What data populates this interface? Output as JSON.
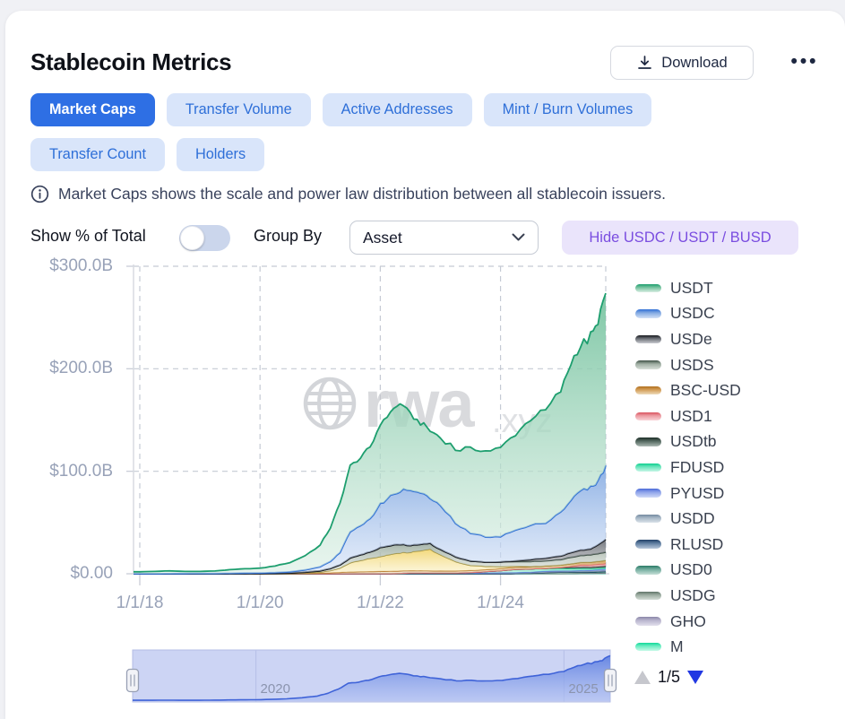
{
  "header": {
    "title": "Stablecoin Metrics",
    "download_label": "Download",
    "more_label": "•••"
  },
  "tabs": [
    {
      "label": "Market Caps",
      "active": true,
      "row": 1
    },
    {
      "label": "Transfer Volume",
      "active": false,
      "row": 1
    },
    {
      "label": "Active Addresses",
      "active": false,
      "row": 1
    },
    {
      "label": "Mint / Burn Volumes",
      "active": false,
      "row": 1
    },
    {
      "label": "Transfer Count",
      "active": false,
      "row": 2
    },
    {
      "label": "Holders",
      "active": false,
      "row": 2
    }
  ],
  "info": {
    "text": "Market Caps shows the scale and power law distribution between all stablecoin issuers."
  },
  "controls": {
    "show_percent_label": "Show % of Total",
    "toggle_state": "off",
    "group_by_label": "Group By",
    "group_by_value": "Asset",
    "hide_assets_label": "Hide USDC / USDT / BUSD",
    "hide_button_bg": "#eae4fb",
    "hide_button_text": "#7a4de0",
    "active_tab_color": "#2e6fe4"
  },
  "chart_data": {
    "type": "area",
    "stacked": true,
    "ylim": [
      0,
      300
    ],
    "y_ticks": [
      {
        "label": "$300.0B",
        "value": 300
      },
      {
        "label": "$200.0B",
        "value": 200
      },
      {
        "label": "$100.0B",
        "value": 100
      },
      {
        "label": "$0.00",
        "value": 0
      }
    ],
    "x_ticks": [
      {
        "label": "1/1/18",
        "year": 2018
      },
      {
        "label": "1/1/20",
        "year": 2020
      },
      {
        "label": "1/1/22",
        "year": 2022
      },
      {
        "label": "1/1/24",
        "year": 2024
      }
    ],
    "x": [
      2018.0,
      2018.25,
      2018.5,
      2018.75,
      2019.0,
      2019.25,
      2019.5,
      2019.75,
      2020.0,
      2020.25,
      2020.5,
      2020.75,
      2021.0,
      2021.17,
      2021.33,
      2021.5,
      2021.67,
      2021.83,
      2022.0,
      2022.17,
      2022.33,
      2022.5,
      2022.67,
      2022.83,
      2023.0,
      2023.25,
      2023.5,
      2023.75,
      2024.0,
      2024.25,
      2024.5,
      2024.75,
      2025.0,
      2025.17,
      2025.33,
      2025.5,
      2025.62,
      2025.75
    ],
    "grid": true,
    "legend_position": "right",
    "legend": {
      "page_label": "1/5"
    },
    "watermark": {
      "brand": "rwa",
      "suffix": ".xyz"
    },
    "series": [
      {
        "name": "USDT",
        "in_legend": true,
        "stroke": "#1d9e6e",
        "fill_top": "#74c29e",
        "fill_bottom": "#d9eee3",
        "values": [
          2.0,
          2.3,
          2.7,
          2.1,
          2.0,
          2.4,
          3.5,
          4.1,
          4.6,
          6.5,
          9.0,
          14,
          21,
          33,
          48,
          64,
          66,
          70,
          78,
          82,
          86,
          74,
          68,
          66,
          66,
          72,
          82,
          84,
          86,
          94,
          104,
          110,
          118,
          134,
          141,
          147,
          156,
          168
        ]
      },
      {
        "name": "USDC",
        "in_legend": true,
        "stroke": "#2f6fd6",
        "fill_top": "#84aae2",
        "fill_bottom": "#d3e1f6",
        "values": [
          0,
          0,
          0.1,
          0.2,
          0.3,
          0.3,
          0.4,
          0.5,
          0.5,
          0.7,
          1.1,
          2.2,
          4,
          7,
          12,
          26,
          28,
          33,
          42,
          48,
          52.5,
          54,
          50,
          44,
          43,
          33,
          27,
          25,
          25,
          30,
          33,
          35,
          43,
          51,
          58,
          60,
          62,
          72
        ]
      },
      {
        "name": "USDe",
        "in_legend": true,
        "stroke": "#17191d",
        "fill_top": "#6a6e75",
        "fill_bottom": "#c9cbd0",
        "values": [
          0,
          0,
          0,
          0,
          0,
          0,
          0,
          0,
          0,
          0,
          0,
          0,
          0,
          0,
          0,
          0,
          0,
          0,
          0,
          0,
          0,
          0,
          0,
          0,
          0,
          0,
          0,
          0,
          0,
          0.5,
          1.8,
          2.6,
          3.4,
          4.6,
          5.2,
          5.6,
          8.5,
          12.5
        ]
      },
      {
        "name": "USDS",
        "in_legend": true,
        "stroke": "#3f5147",
        "fill_top": "#9faea2",
        "fill_bottom": "#d8dfd8",
        "values": [
          0,
          0,
          0,
          0,
          0,
          0,
          0.05,
          0.1,
          0.1,
          0.15,
          0.3,
          0.6,
          1.3,
          2.2,
          3.2,
          4.8,
          5.5,
          6.2,
          9,
          8.8,
          8.4,
          6.8,
          6.2,
          5.7,
          5.2,
          4.9,
          4.5,
          4.1,
          4.6,
          4.8,
          5.0,
          5.2,
          5.6,
          6.3,
          6.8,
          7.2,
          7.7,
          8.2
        ]
      },
      {
        "name": "BUSD",
        "in_legend": false,
        "stroke": "#9c8a2e",
        "fill_top": "#f2d56e",
        "fill_bottom": "#faf0c6",
        "values": [
          0,
          0,
          0,
          0,
          0,
          0,
          0,
          0.1,
          0.2,
          0.3,
          0.4,
          0.7,
          1,
          2,
          4,
          9,
          11,
          13,
          14.5,
          16.5,
          17.5,
          18,
          19.5,
          21,
          16,
          9,
          5,
          3.2,
          2,
          0.8,
          0.3,
          0.1,
          0,
          0,
          0,
          0,
          0,
          0
        ]
      },
      {
        "name": "BSC-USD",
        "in_legend": true,
        "stroke": "#b06f1e",
        "fill_top": "#d29c55",
        "fill_bottom": "#eedbbc",
        "values": [
          0,
          0,
          0,
          0,
          0,
          0,
          0,
          0,
          0,
          0,
          0.1,
          0.3,
          0.5,
          0.9,
          1.3,
          1.7,
          1.9,
          2.1,
          2.3,
          2.4,
          2.4,
          2.3,
          2.2,
          2.1,
          2.0,
          2.0,
          2.0,
          2.0,
          2.0,
          2.1,
          2.2,
          2.3,
          2.4,
          2.5,
          2.6,
          2.7,
          2.85,
          3.0
        ]
      },
      {
        "name": "USD1",
        "in_legend": true,
        "stroke": "#d9545f",
        "fill_top": "#ec9aa1",
        "fill_bottom": "#f9d6d9",
        "values": [
          0,
          0,
          0,
          0,
          0,
          0,
          0,
          0,
          0,
          0,
          0,
          0,
          0,
          0,
          0,
          0,
          0,
          0,
          0,
          0,
          0,
          0,
          0,
          0,
          0,
          0,
          0,
          0,
          0,
          0,
          0,
          0,
          0,
          0.9,
          1.9,
          2.1,
          2.2,
          2.4
        ]
      },
      {
        "name": "USDtb",
        "in_legend": true,
        "stroke": "#1d2f28",
        "fill_top": "#53675f",
        "fill_bottom": "#adbab4",
        "values": [
          0,
          0,
          0,
          0,
          0,
          0,
          0,
          0,
          0,
          0,
          0,
          0,
          0,
          0,
          0,
          0,
          0,
          0,
          0,
          0,
          0,
          0,
          0,
          0,
          0,
          0,
          0,
          0,
          0,
          0,
          0,
          0,
          0.9,
          1.3,
          1.4,
          1.45,
          1.5,
          1.55
        ]
      },
      {
        "name": "FDUSD",
        "in_legend": true,
        "stroke": "#0ecf8f",
        "fill_top": "#66e5ba",
        "fill_bottom": "#c6f6e6",
        "values": [
          0,
          0,
          0,
          0,
          0,
          0,
          0,
          0,
          0,
          0,
          0,
          0,
          0,
          0,
          0,
          0,
          0,
          0,
          0,
          0,
          0,
          0,
          0,
          0,
          0,
          0,
          0.4,
          1.1,
          1.9,
          3.2,
          3.0,
          2.6,
          2.3,
          2.1,
          1.9,
          1.6,
          1.5,
          1.4
        ]
      },
      {
        "name": "PYUSD",
        "in_legend": true,
        "stroke": "#4a6ad8",
        "fill_top": "#8fa4ea",
        "fill_bottom": "#cfd9f7",
        "values": [
          0,
          0,
          0,
          0,
          0,
          0,
          0,
          0,
          0,
          0,
          0,
          0,
          0,
          0,
          0,
          0,
          0,
          0,
          0,
          0,
          0,
          0,
          0,
          0,
          0,
          0,
          0,
          0.15,
          0.3,
          0.4,
          0.5,
          0.8,
          0.6,
          0.5,
          0.7,
          0.9,
          1.1,
          1.3
        ]
      },
      {
        "name": "USDD",
        "in_legend": true,
        "stroke": "#73899f",
        "fill_top": "#a6b7c6",
        "fill_bottom": "#dae2e9",
        "values": [
          0,
          0,
          0,
          0,
          0,
          0,
          0,
          0,
          0,
          0,
          0,
          0,
          0,
          0,
          0,
          0,
          0,
          0,
          0,
          0,
          0.3,
          0.7,
          0.73,
          0.73,
          0.72,
          0.72,
          0.72,
          0.71,
          0.71,
          0.72,
          0.73,
          0.74,
          0.75,
          0.78,
          0.8,
          0.85,
          0.9,
          1.0
        ]
      },
      {
        "name": "RLUSD",
        "in_legend": true,
        "stroke": "#1f3f66",
        "fill_top": "#5f7da0",
        "fill_bottom": "#b7c7da",
        "values": [
          0,
          0,
          0,
          0,
          0,
          0,
          0,
          0,
          0,
          0,
          0,
          0,
          0,
          0,
          0,
          0,
          0,
          0,
          0,
          0,
          0,
          0,
          0,
          0,
          0,
          0,
          0,
          0,
          0,
          0,
          0,
          0,
          0.1,
          0.2,
          0.3,
          0.35,
          0.5,
          0.7
        ]
      },
      {
        "name": "USD0",
        "in_legend": true,
        "stroke": "#2a7a66",
        "fill_top": "#72ac9e",
        "fill_bottom": "#c7dfd8",
        "values": [
          0,
          0,
          0,
          0,
          0,
          0,
          0,
          0,
          0,
          0,
          0,
          0,
          0,
          0,
          0,
          0,
          0,
          0,
          0,
          0,
          0,
          0,
          0,
          0,
          0,
          0,
          0,
          0,
          0,
          0,
          0.3,
          0.9,
          1.3,
          1.1,
          0.9,
          0.7,
          0.65,
          0.6
        ]
      },
      {
        "name": "USDG",
        "in_legend": true,
        "stroke": "#5f7568",
        "fill_top": "#9baba0",
        "fill_bottom": "#d4ddd6",
        "values": [
          0,
          0,
          0,
          0,
          0,
          0,
          0,
          0,
          0,
          0,
          0,
          0,
          0,
          0,
          0,
          0,
          0,
          0,
          0,
          0,
          0,
          0,
          0,
          0,
          0,
          0,
          0,
          0,
          0,
          0,
          0,
          0,
          0,
          0.15,
          0.25,
          0.35,
          0.4,
          0.5
        ]
      },
      {
        "name": "GHO",
        "in_legend": true,
        "stroke": "#8a86a8",
        "fill_top": "#bab6ce",
        "fill_bottom": "#e2e0ec",
        "values": [
          0,
          0,
          0,
          0,
          0,
          0,
          0,
          0,
          0,
          0,
          0,
          0,
          0,
          0,
          0,
          0,
          0,
          0,
          0,
          0,
          0,
          0,
          0,
          0,
          0,
          0,
          0,
          0.02,
          0.03,
          0.05,
          0.08,
          0.1,
          0.12,
          0.15,
          0.18,
          0.2,
          0.25,
          0.3
        ]
      },
      {
        "name": "M",
        "in_legend": true,
        "stroke": "#10d898",
        "fill_top": "#69edc2",
        "fill_bottom": "#c7f9e8",
        "values": [
          0,
          0,
          0,
          0,
          0,
          0,
          0,
          0,
          0,
          0,
          0,
          0,
          0,
          0,
          0,
          0,
          0,
          0,
          0,
          0,
          0,
          0,
          0,
          0,
          0,
          0,
          0,
          0,
          0,
          0,
          0,
          0,
          0,
          0,
          0.06,
          0.1,
          0.15,
          0.2
        ]
      }
    ]
  },
  "brush": {
    "labels": [
      {
        "label": "2020",
        "year": 2020
      },
      {
        "label": "2025",
        "year": 2025
      }
    ]
  }
}
